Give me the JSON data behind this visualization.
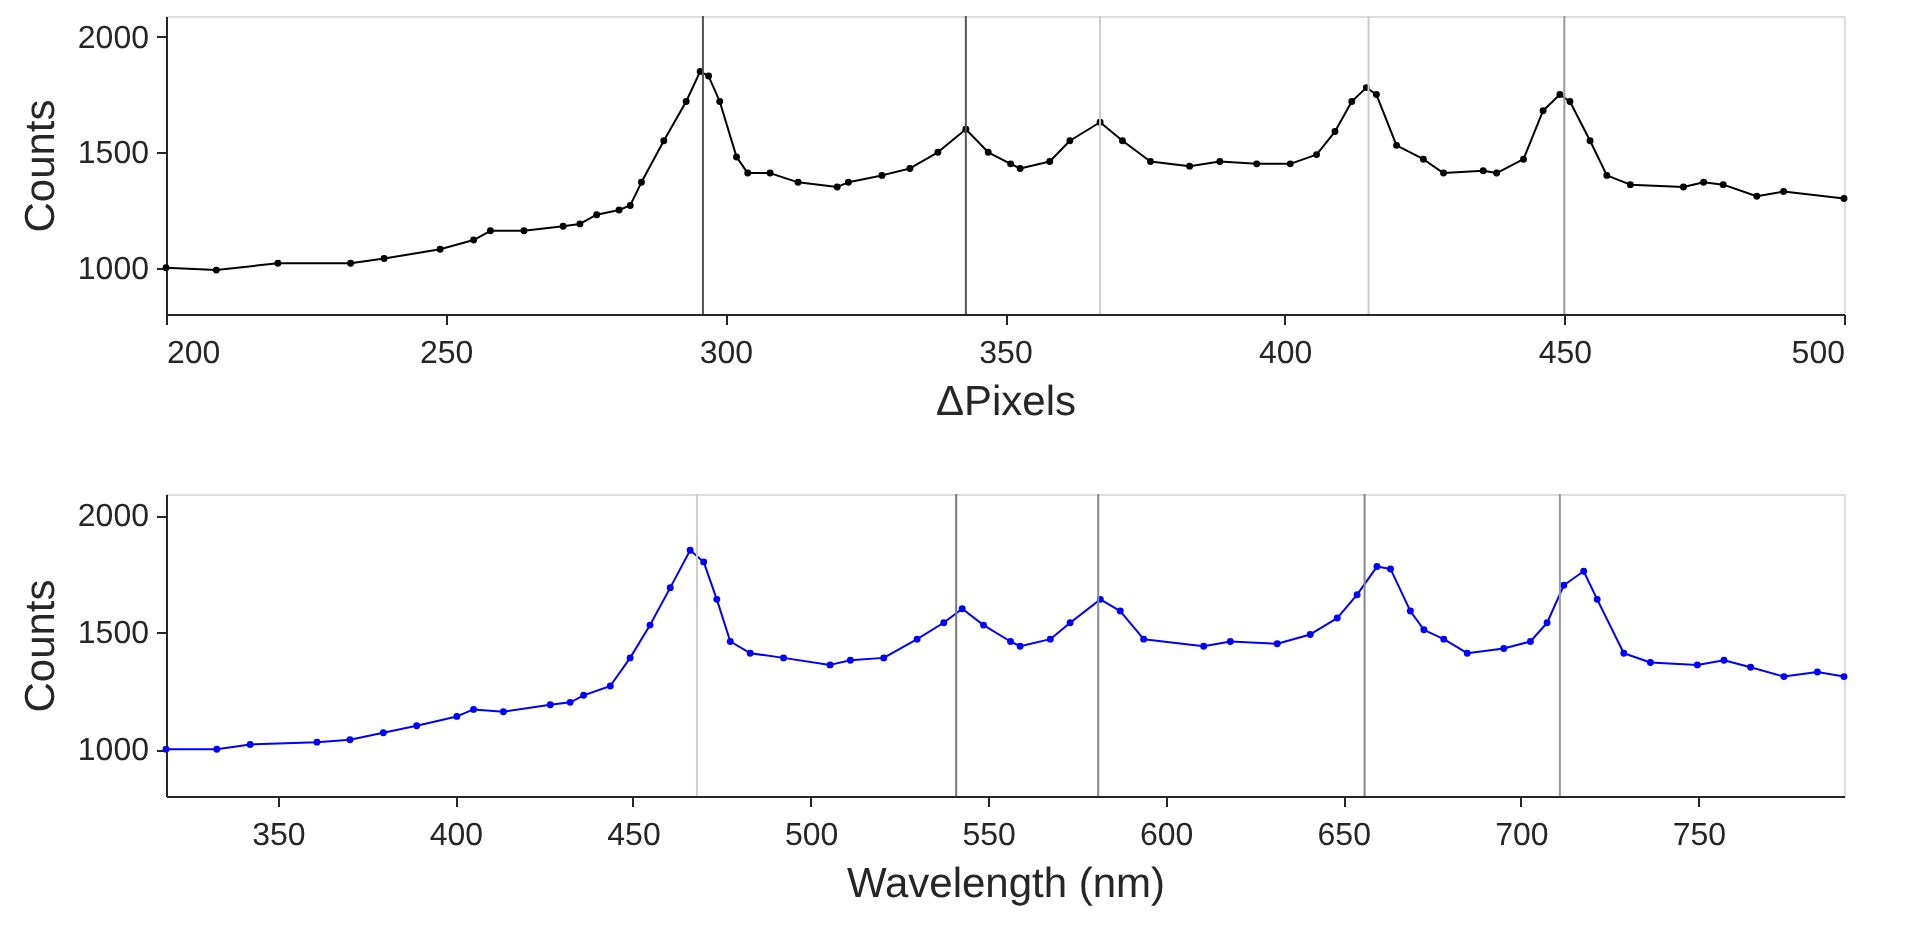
{
  "chart_data": [
    {
      "type": "line",
      "xlabel": "ΔPixels",
      "ylabel": "Counts",
      "xlim": [
        200,
        500
      ],
      "xticks": [
        200,
        250,
        300,
        350,
        400,
        450,
        500
      ],
      "ylim": [
        800,
        2090
      ],
      "yticks": [
        1000,
        1500,
        2000
      ],
      "grid": false,
      "marker": "circle",
      "line_style": "solid",
      "series": [
        {
          "color": "#000000",
          "x": [
            200,
            209,
            220,
            233,
            239,
            249,
            255,
            258,
            264,
            271,
            274,
            277,
            281,
            283,
            285,
            289,
            293,
            295.5,
            297,
            299,
            302,
            304,
            308,
            313,
            320,
            322,
            328,
            333,
            338,
            343,
            347,
            351,
            352.7,
            358,
            361.6,
            367,
            371,
            376,
            383,
            388.4,
            395,
            401,
            405.7,
            409,
            412,
            414.6,
            416.4,
            420,
            424.8,
            428.4,
            435.5,
            437.9,
            442.7,
            446.2,
            449.2,
            451,
            454.6,
            457.6,
            461.8,
            471.3,
            474.9,
            478.4,
            484.4,
            489.2,
            500
          ],
          "values": [
            1000,
            990,
            1020,
            1020,
            1040,
            1080,
            1120,
            1160,
            1160,
            1180,
            1190,
            1230,
            1250,
            1270,
            1370,
            1550,
            1720,
            1850,
            1830,
            1720,
            1480,
            1410,
            1410,
            1370,
            1350,
            1370,
            1400,
            1430,
            1500,
            1600,
            1500,
            1450,
            1430,
            1460,
            1550,
            1630,
            1550,
            1460,
            1440,
            1460,
            1450,
            1450,
            1490,
            1590,
            1720,
            1780,
            1750,
            1530,
            1470,
            1410,
            1420,
            1410,
            1470,
            1680,
            1750,
            1720,
            1550,
            1400,
            1360,
            1350,
            1370,
            1360,
            1310,
            1330,
            1300
          ]
        }
      ],
      "ref_lines": [
        {
          "axis": "x",
          "value": 296,
          "color": "#555555"
        },
        {
          "axis": "x",
          "value": 343,
          "color": "#555555"
        },
        {
          "axis": "x",
          "value": 367,
          "color": "#cccccc"
        },
        {
          "axis": "x",
          "value": 415,
          "color": "#cccccc"
        },
        {
          "axis": "x",
          "value": 450,
          "color": "#999999"
        }
      ]
    },
    {
      "type": "line",
      "xlabel": "Wavelength (nm)",
      "ylabel": "Counts",
      "xlim": [
        318.5,
        791
      ],
      "xticks": [
        350,
        400,
        450,
        500,
        550,
        600,
        650,
        700,
        750
      ],
      "ylim": [
        800,
        2090
      ],
      "yticks": [
        1000,
        1500,
        2000
      ],
      "grid": false,
      "marker": "circle",
      "line_style": "solid",
      "series": [
        {
          "color": "#0000ff",
          "x": [
            318.5,
            332.8,
            342.2,
            361,
            370.3,
            379.7,
            389.1,
            400.4,
            405.1,
            413.5,
            426.7,
            432.3,
            436.1,
            443.6,
            449.2,
            454.8,
            460.5,
            466.1,
            469.9,
            473.6,
            477.4,
            483,
            492.4,
            505.5,
            511.2,
            520.6,
            530,
            537.5,
            542.7,
            548.7,
            556.3,
            559,
            567.5,
            573.1,
            581.6,
            587.2,
            593.8,
            610.7,
            618.2,
            631.4,
            640.7,
            648.3,
            653.9,
            659.5,
            663.3,
            668.9,
            672.7,
            678.3,
            684.9,
            695.2,
            702.7,
            707.4,
            712.1,
            717.7,
            721.5,
            729,
            736.5,
            749.7,
            757.2,
            764.7,
            774.1,
            783.5,
            791
          ],
          "values": [
            1000,
            1000,
            1020,
            1030,
            1040,
            1070,
            1100,
            1140,
            1170,
            1160,
            1190,
            1200,
            1230,
            1270,
            1390,
            1530,
            1690,
            1850,
            1800,
            1640,
            1460,
            1410,
            1390,
            1360,
            1380,
            1390,
            1470,
            1540,
            1600,
            1530,
            1460,
            1440,
            1470,
            1540,
            1640,
            1590,
            1470,
            1440,
            1460,
            1450,
            1490,
            1560,
            1660,
            1780,
            1770,
            1590,
            1510,
            1470,
            1410,
            1430,
            1460,
            1540,
            1700,
            1760,
            1640,
            1410,
            1370,
            1360,
            1380,
            1350,
            1310,
            1330,
            1310
          ]
        }
      ],
      "ref_lines": [
        {
          "axis": "x",
          "value": 468,
          "color": "#cccccc"
        },
        {
          "axis": "x",
          "value": 541,
          "color": "#777777"
        },
        {
          "axis": "x",
          "value": 581,
          "color": "#888888"
        },
        {
          "axis": "x",
          "value": 656,
          "color": "#888888"
        },
        {
          "axis": "x",
          "value": 711,
          "color": "#999999"
        }
      ]
    }
  ]
}
